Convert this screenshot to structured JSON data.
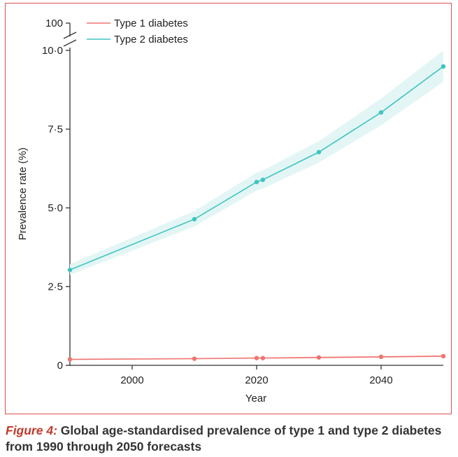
{
  "caption": {
    "label": "Figure 4:",
    "text": " Global age-standardised prevalence of type 1 and type 2 diabetes from 1990 through 2050 forecasts"
  },
  "chart_data": {
    "type": "line",
    "title": "",
    "xlabel": "Year",
    "ylabel": "Prevalence rate (%)",
    "xlim": [
      1990,
      2050
    ],
    "ylim": [
      0,
      10
    ],
    "x_ticks": [
      {
        "value": 2000,
        "label": "2000"
      },
      {
        "value": 2020,
        "label": "2020"
      },
      {
        "value": 2040,
        "label": "2040"
      }
    ],
    "y_ticks": [
      {
        "value": 0,
        "label": "0"
      },
      {
        "value": 2.5,
        "label": "2·5"
      },
      {
        "value": 5,
        "label": "5·0"
      },
      {
        "value": 7.5,
        "label": "7·5"
      },
      {
        "value": 10,
        "label": "10·0"
      }
    ],
    "y_break_label": "100",
    "legend_position": "top-left",
    "series": [
      {
        "name": "Type 1 diabetes",
        "color": "#f07470",
        "x": [
          1990,
          2010,
          2020,
          2021,
          2030,
          2040,
          2050
        ],
        "values": [
          0.19,
          0.21,
          0.23,
          0.23,
          0.25,
          0.27,
          0.29
        ],
        "lower": [
          0.17,
          0.19,
          0.21,
          0.21,
          0.22,
          0.24,
          0.26
        ],
        "upper": [
          0.21,
          0.23,
          0.25,
          0.25,
          0.28,
          0.3,
          0.32
        ]
      },
      {
        "name": "Type 2 diabetes",
        "color": "#3fc4c0",
        "band_color": "#e3f6f5",
        "x": [
          1990,
          2010,
          2020,
          2021,
          2030,
          2040,
          2050
        ],
        "values": [
          3.03,
          4.64,
          5.82,
          5.89,
          6.77,
          8.03,
          9.49
        ],
        "lower": [
          2.87,
          4.41,
          5.55,
          5.61,
          6.44,
          7.62,
          9.0
        ],
        "upper": [
          3.21,
          4.9,
          6.12,
          6.19,
          7.12,
          8.47,
          10.0
        ]
      }
    ]
  }
}
